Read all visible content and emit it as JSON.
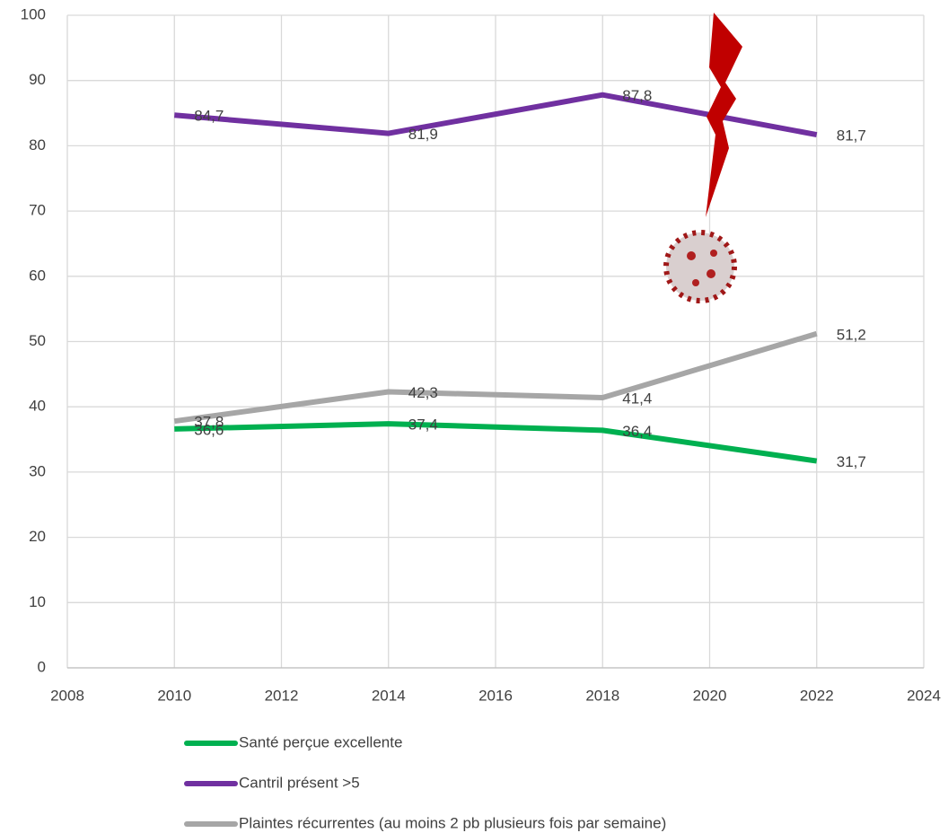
{
  "chart_data": {
    "type": "line",
    "x": [
      2010,
      2014,
      2018,
      2022
    ],
    "series": [
      {
        "name": "Santé perçue excellente",
        "color": "#00b050",
        "values": [
          36.6,
          37.4,
          36.4,
          31.7
        ],
        "value_labels": [
          "36,6",
          "37,4",
          "36,4",
          "31,7"
        ]
      },
      {
        "name": "Cantril présent >5",
        "color": "#7030a0",
        "values": [
          84.7,
          81.9,
          87.8,
          81.7
        ],
        "value_labels": [
          "84,7",
          "81,9",
          "87,8",
          "81,7"
        ]
      },
      {
        "name": "Plaintes récurrentes (au moins 2 pb plusieurs fois par semaine)",
        "color": "#a6a6a6",
        "values": [
          37.8,
          42.3,
          41.4,
          51.2
        ],
        "value_labels": [
          "37,8",
          "42,3",
          "41,4",
          "51,2"
        ]
      }
    ],
    "xlim": [
      2008,
      2024
    ],
    "xticks": [
      2008,
      2010,
      2012,
      2014,
      2016,
      2018,
      2020,
      2022,
      2024
    ],
    "ylim": [
      0,
      100
    ],
    "yticks": [
      0,
      10,
      20,
      30,
      40,
      50,
      60,
      70,
      80,
      90,
      100
    ],
    "grid": true,
    "legend": "bottom"
  }
}
